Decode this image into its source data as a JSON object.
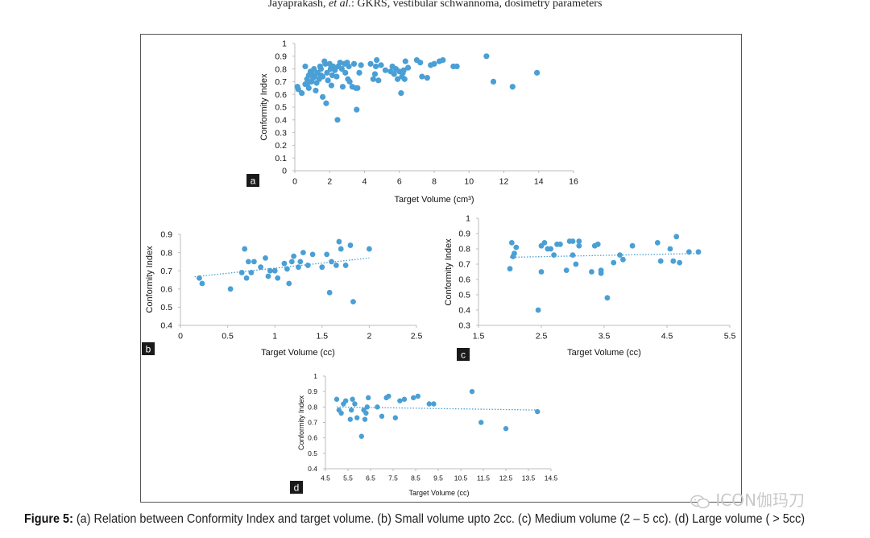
{
  "page": {
    "header_author": "Jayaprakash,",
    "header_etal": "et al.",
    "header_rest": ": GKRS, vestibular schwannoma, dosimetry parameters",
    "caption_label": "Figure 5:",
    "caption_text": " (a) Relation between Conformity Index and target volume. (b) Small volume upto 2cc. (c) Medium volume (2 – 5 cc). (d) Large volume ( > 5cc)",
    "watermark_text": "ICON伽玛刀",
    "colors": {
      "marker": "#4a9fd5",
      "trend": "#4a9fd5",
      "axis": "#bdbdbd",
      "frame": "#555555"
    }
  },
  "chart_data": [
    {
      "id": "a",
      "type": "scatter",
      "panel_label": "a",
      "xlabel": "Target Volume (cm³)",
      "ylabel": "Conformity Index",
      "xlim": [
        0,
        16
      ],
      "ylim": [
        0,
        1
      ],
      "xticks": [
        "0",
        "2",
        "4",
        "6",
        "8",
        "10",
        "12",
        "14",
        "16"
      ],
      "yticks": [
        "0",
        "0.1",
        "0.2",
        "0.3",
        "0.4",
        "0.5",
        "0.6",
        "0.7",
        "0.8",
        "0.9",
        "1"
      ],
      "trendline": false,
      "points": [
        [
          0.15,
          0.66
        ],
        [
          0.2,
          0.64
        ],
        [
          0.4,
          0.61
        ],
        [
          0.6,
          0.82
        ],
        [
          0.6,
          0.68
        ],
        [
          0.7,
          0.72
        ],
        [
          0.75,
          0.69
        ],
        [
          0.8,
          0.75
        ],
        [
          0.8,
          0.65
        ],
        [
          0.9,
          0.78
        ],
        [
          0.95,
          0.7
        ],
        [
          1.0,
          0.76
        ],
        [
          1.05,
          0.73
        ],
        [
          1.1,
          0.8
        ],
        [
          1.15,
          0.74
        ],
        [
          1.2,
          0.63
        ],
        [
          1.25,
          0.69
        ],
        [
          1.3,
          0.77
        ],
        [
          1.4,
          0.72
        ],
        [
          1.45,
          0.82
        ],
        [
          1.5,
          0.75
        ],
        [
          1.5,
          0.8
        ],
        [
          1.6,
          0.58
        ],
        [
          1.6,
          0.74
        ],
        [
          1.7,
          0.86
        ],
        [
          1.75,
          0.84
        ],
        [
          1.8,
          0.53
        ],
        [
          1.85,
          0.77
        ],
        [
          1.9,
          0.71
        ],
        [
          2.0,
          0.84
        ],
        [
          2.05,
          0.8
        ],
        [
          2.1,
          0.67
        ],
        [
          2.15,
          0.75
        ],
        [
          2.2,
          0.82
        ],
        [
          2.3,
          0.79
        ],
        [
          2.4,
          0.74
        ],
        [
          2.45,
          0.4
        ],
        [
          2.5,
          0.82
        ],
        [
          2.6,
          0.85
        ],
        [
          2.7,
          0.8
        ],
        [
          2.75,
          0.66
        ],
        [
          2.85,
          0.84
        ],
        [
          2.9,
          0.77
        ],
        [
          3.0,
          0.85
        ],
        [
          3.05,
          0.72
        ],
        [
          3.1,
          0.82
        ],
        [
          3.15,
          0.7
        ],
        [
          3.3,
          0.66
        ],
        [
          3.4,
          0.84
        ],
        [
          3.5,
          0.65
        ],
        [
          3.55,
          0.48
        ],
        [
          3.6,
          0.65
        ],
        [
          3.7,
          0.77
        ],
        [
          3.8,
          0.83
        ],
        [
          4.35,
          0.84
        ],
        [
          4.5,
          0.72
        ],
        [
          4.6,
          0.76
        ],
        [
          4.65,
          0.82
        ],
        [
          4.7,
          0.87
        ],
        [
          4.8,
          0.71
        ],
        [
          4.95,
          0.83
        ],
        [
          5.2,
          0.79
        ],
        [
          5.5,
          0.78
        ],
        [
          5.6,
          0.82
        ],
        [
          5.7,
          0.76
        ],
        [
          5.8,
          0.8
        ],
        [
          5.9,
          0.72
        ],
        [
          6.0,
          0.78
        ],
        [
          6.1,
          0.61
        ],
        [
          6.15,
          0.74
        ],
        [
          6.2,
          0.77
        ],
        [
          6.25,
          0.79
        ],
        [
          6.3,
          0.72
        ],
        [
          6.35,
          0.86
        ],
        [
          6.5,
          0.81
        ],
        [
          7.0,
          0.87
        ],
        [
          7.2,
          0.85
        ],
        [
          7.3,
          0.74
        ],
        [
          7.6,
          0.73
        ],
        [
          7.8,
          0.83
        ],
        [
          8.0,
          0.84
        ],
        [
          8.3,
          0.86
        ],
        [
          8.5,
          0.87
        ],
        [
          9.1,
          0.82
        ],
        [
          9.3,
          0.82
        ],
        [
          11.0,
          0.9
        ],
        [
          11.4,
          0.7
        ],
        [
          12.5,
          0.66
        ],
        [
          13.9,
          0.77
        ]
      ]
    },
    {
      "id": "b",
      "type": "scatter",
      "panel_label": "b",
      "xlabel": "Target Volume (cc)",
      "ylabel": "Conformity Index",
      "xlim": [
        0,
        2.5
      ],
      "ylim": [
        0.4,
        0.9
      ],
      "xticks": [
        "0",
        "0.5",
        "1",
        "1.5",
        "2",
        "2.5"
      ],
      "yticks": [
        "0.4",
        "0.5",
        "0.6",
        "0.7",
        "0.8",
        "0.9"
      ],
      "trendline": true,
      "trend": [
        [
          0.15,
          0.667
        ],
        [
          2.0,
          0.77
        ]
      ],
      "points": [
        [
          0.2,
          0.66
        ],
        [
          0.23,
          0.63
        ],
        [
          0.53,
          0.6
        ],
        [
          0.65,
          0.69
        ],
        [
          0.68,
          0.82
        ],
        [
          0.7,
          0.66
        ],
        [
          0.72,
          0.75
        ],
        [
          0.75,
          0.69
        ],
        [
          0.78,
          0.75
        ],
        [
          0.85,
          0.72
        ],
        [
          0.9,
          0.77
        ],
        [
          0.93,
          0.67
        ],
        [
          0.95,
          0.7
        ],
        [
          1.0,
          0.7
        ],
        [
          1.03,
          0.66
        ],
        [
          1.1,
          0.74
        ],
        [
          1.13,
          0.71
        ],
        [
          1.15,
          0.63
        ],
        [
          1.18,
          0.75
        ],
        [
          1.2,
          0.78
        ],
        [
          1.25,
          0.72
        ],
        [
          1.27,
          0.75
        ],
        [
          1.3,
          0.8
        ],
        [
          1.35,
          0.73
        ],
        [
          1.4,
          0.79
        ],
        [
          1.5,
          0.72
        ],
        [
          1.55,
          0.79
        ],
        [
          1.58,
          0.58
        ],
        [
          1.6,
          0.75
        ],
        [
          1.65,
          0.73
        ],
        [
          1.68,
          0.86
        ],
        [
          1.7,
          0.82
        ],
        [
          1.75,
          0.73
        ],
        [
          1.8,
          0.84
        ],
        [
          1.83,
          0.53
        ],
        [
          2.0,
          0.82
        ]
      ]
    },
    {
      "id": "c",
      "type": "scatter",
      "panel_label": "c",
      "xlabel": "Target Volume (cc)",
      "ylabel": "Conformity Index",
      "xlim": [
        1.5,
        5.5
      ],
      "ylim": [
        0.3,
        1
      ],
      "xticks": [
        "1.5",
        "2.5",
        "3.5",
        "4.5",
        "5.5"
      ],
      "yticks": [
        "0.3",
        "0.4",
        "0.5",
        "0.6",
        "0.7",
        "0.8",
        "0.9",
        "1"
      ],
      "trendline": true,
      "trend": [
        [
          2.0,
          0.745
        ],
        [
          5.0,
          0.77
        ]
      ],
      "points": [
        [
          2.0,
          0.67
        ],
        [
          2.03,
          0.84
        ],
        [
          2.05,
          0.75
        ],
        [
          2.07,
          0.77
        ],
        [
          2.1,
          0.81
        ],
        [
          2.45,
          0.4
        ],
        [
          2.5,
          0.65
        ],
        [
          2.5,
          0.82
        ],
        [
          2.55,
          0.84
        ],
        [
          2.6,
          0.8
        ],
        [
          2.65,
          0.8
        ],
        [
          2.7,
          0.76
        ],
        [
          2.75,
          0.83
        ],
        [
          2.8,
          0.83
        ],
        [
          2.9,
          0.66
        ],
        [
          2.95,
          0.85
        ],
        [
          3.0,
          0.85
        ],
        [
          3.0,
          0.76
        ],
        [
          3.05,
          0.7
        ],
        [
          3.1,
          0.85
        ],
        [
          3.1,
          0.82
        ],
        [
          3.3,
          0.65
        ],
        [
          3.35,
          0.82
        ],
        [
          3.4,
          0.83
        ],
        [
          3.45,
          0.66
        ],
        [
          3.45,
          0.64
        ],
        [
          3.55,
          0.48
        ],
        [
          3.65,
          0.71
        ],
        [
          3.75,
          0.76
        ],
        [
          3.8,
          0.73
        ],
        [
          3.95,
          0.82
        ],
        [
          4.35,
          0.84
        ],
        [
          4.4,
          0.72
        ],
        [
          4.55,
          0.8
        ],
        [
          4.6,
          0.72
        ],
        [
          4.65,
          0.88
        ],
        [
          4.7,
          0.71
        ],
        [
          4.85,
          0.78
        ],
        [
          5.0,
          0.78
        ]
      ]
    },
    {
      "id": "d",
      "type": "scatter",
      "panel_label": "d",
      "xlabel": "Target Volume (cc)",
      "ylabel": "Conformity Index",
      "xlim": [
        4.5,
        14.5
      ],
      "ylim": [
        0.4,
        1
      ],
      "xticks": [
        "4.5",
        "5.5",
        "6.5",
        "7.5",
        "8.5",
        "9.5",
        "10.5",
        "11.5",
        "12.5",
        "13.5",
        "14.5"
      ],
      "yticks": [
        "0.4",
        "0.5",
        "0.6",
        "0.7",
        "0.8",
        "0.9",
        "1"
      ],
      "trendline": true,
      "trend": [
        [
          5.0,
          0.8
        ],
        [
          14.0,
          0.78
        ]
      ],
      "points": [
        [
          5.0,
          0.85
        ],
        [
          5.1,
          0.78
        ],
        [
          5.2,
          0.76
        ],
        [
          5.3,
          0.82
        ],
        [
          5.4,
          0.84
        ],
        [
          5.6,
          0.72
        ],
        [
          5.65,
          0.78
        ],
        [
          5.7,
          0.85
        ],
        [
          5.8,
          0.82
        ],
        [
          5.9,
          0.73
        ],
        [
          6.1,
          0.61
        ],
        [
          6.2,
          0.78
        ],
        [
          6.25,
          0.72
        ],
        [
          6.3,
          0.76
        ],
        [
          6.35,
          0.8
        ],
        [
          6.4,
          0.86
        ],
        [
          6.8,
          0.8
        ],
        [
          7.0,
          0.74
        ],
        [
          7.2,
          0.86
        ],
        [
          7.3,
          0.87
        ],
        [
          7.6,
          0.73
        ],
        [
          7.8,
          0.84
        ],
        [
          8.0,
          0.85
        ],
        [
          8.4,
          0.86
        ],
        [
          8.6,
          0.87
        ],
        [
          9.1,
          0.82
        ],
        [
          9.3,
          0.82
        ],
        [
          11.0,
          0.9
        ],
        [
          11.4,
          0.7
        ],
        [
          12.5,
          0.66
        ],
        [
          13.9,
          0.77
        ]
      ]
    }
  ]
}
